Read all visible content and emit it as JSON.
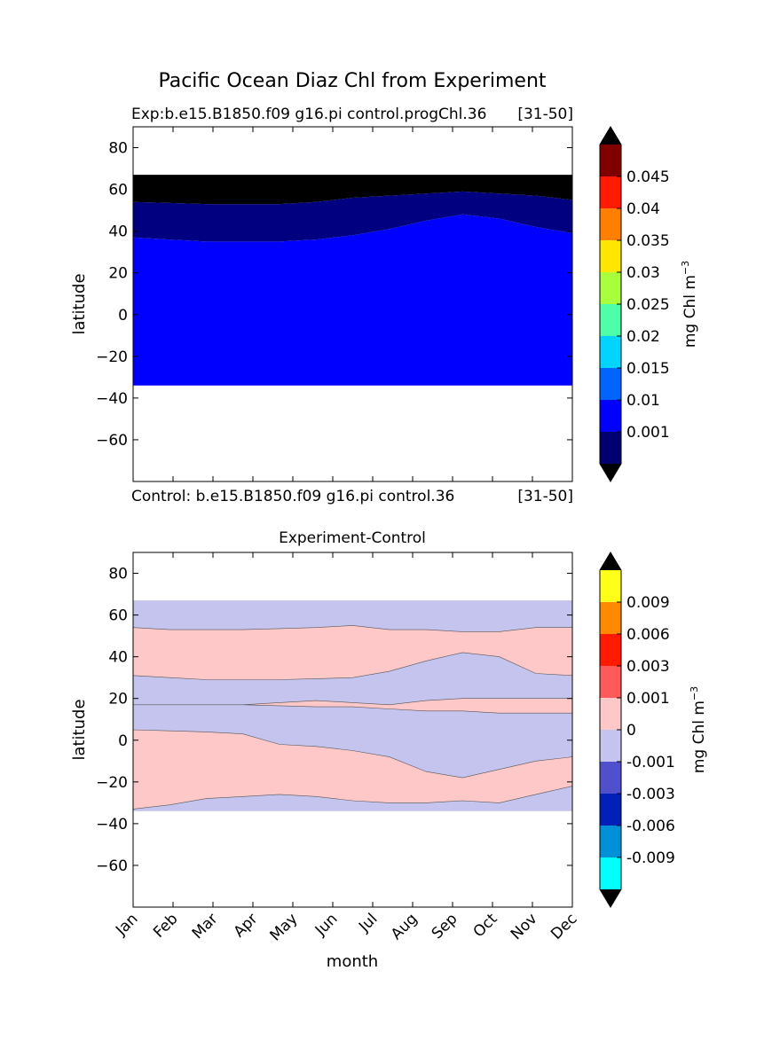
{
  "suptitle": "Pacific Ocean Diaz Chl from Experiment",
  "chart_data": [
    {
      "type": "heatmap",
      "panel": "experiment",
      "title_left": "Exp:b.e15.B1850.f09 g16.pi control.progChl.36",
      "title_right": "[31-50]",
      "bottom_left": "Control: b.e15.B1850.f09 g16.pi control.36",
      "bottom_right": "[31-50]",
      "ylabel": "latitude",
      "ylim": [
        -80,
        90
      ],
      "yticks": [
        80,
        60,
        40,
        20,
        0,
        -20,
        -40,
        -60
      ],
      "xlim": [
        1,
        12
      ],
      "months": [
        "Jan",
        "Feb",
        "Mar",
        "Apr",
        "May",
        "Jun",
        "Jul",
        "Aug",
        "Sep",
        "Oct",
        "Nov",
        "Dec"
      ],
      "data_lat_range": [
        -34,
        67
      ],
      "regions": [
        {
          "level": "0.001-0.01",
          "color": "#0000ff",
          "lower": [
            -34,
            -34,
            -34,
            -34,
            -34,
            -34,
            -34,
            -34,
            -34,
            -34,
            -34,
            -34,
            -34
          ],
          "upper": [
            37,
            36,
            35,
            35,
            35,
            36,
            38,
            41,
            45,
            48,
            46,
            42,
            39
          ]
        },
        {
          "level": "<0.001",
          "color": "#000080",
          "lower": [
            37,
            36,
            35,
            35,
            35,
            36,
            38,
            41,
            45,
            48,
            46,
            42,
            39
          ],
          "upper": [
            54,
            53.5,
            53,
            53,
            53,
            54,
            56,
            57,
            58,
            59,
            58,
            57,
            55
          ]
        },
        {
          "level": "<0.001 (darkest)",
          "color": "#000000",
          "lower": [
            54,
            53.5,
            53,
            53,
            53,
            54,
            56,
            57,
            58,
            59,
            58,
            57,
            55
          ],
          "upper": [
            67,
            67,
            67,
            67,
            67,
            67,
            67,
            67,
            67,
            67,
            67,
            67,
            67
          ]
        }
      ],
      "colorbar": {
        "label": "mg Chl m",
        "label_sup": "−3",
        "colors": [
          "#00006e",
          "#0000ff",
          "#0064ff",
          "#00d4ff",
          "#4dffa8",
          "#a8ff3b",
          "#ffe600",
          "#ff7f00",
          "#ff1a00",
          "#800000"
        ],
        "ticklabels": [
          "0.001",
          "0.01",
          "0.015",
          "0.02",
          "0.025",
          "0.03",
          "0.035",
          "0.04",
          "0.045"
        ],
        "under_color": "#000000",
        "over_color": "#000000"
      }
    },
    {
      "type": "heatmap",
      "panel": "difference",
      "title": "Experiment-Control",
      "ylabel": "latitude",
      "xlabel": "month",
      "ylim": [
        -80,
        90
      ],
      "yticks": [
        80,
        60,
        40,
        20,
        0,
        -20,
        -40,
        -60
      ],
      "xlim": [
        1,
        12
      ],
      "months": [
        "Jan",
        "Feb",
        "Mar",
        "Apr",
        "May",
        "Jun",
        "Jul",
        "Aug",
        "Sep",
        "Oct",
        "Nov",
        "Dec"
      ],
      "data_lat_range": [
        -34,
        67
      ],
      "background_band": {
        "level": "-0.001-0",
        "color": "#c4c4ee"
      },
      "positive_bands": [
        {
          "level": "0-0.001",
          "color": "#ffc8c8",
          "lower": [
            31,
            30,
            29,
            29,
            29,
            29.5,
            30,
            33,
            38,
            42,
            40,
            32,
            31
          ],
          "upper": [
            54,
            53,
            53,
            53,
            53.5,
            54,
            55,
            53,
            53,
            52,
            52,
            54,
            54
          ]
        },
        {
          "level": "0-0.001",
          "color": "#ffc8c8",
          "lower": [
            -33,
            -31,
            -28,
            -27,
            -26,
            -27,
            -29,
            -30,
            -30,
            -29,
            -30,
            -26,
            -22
          ],
          "upper": [
            5,
            4.5,
            4,
            3,
            -2,
            -3,
            -5,
            -8,
            -15,
            -18,
            -14,
            -10,
            -8
          ]
        },
        {
          "level": "0-0.001",
          "color": "#ffc8c8",
          "lower": [
            17,
            17,
            17,
            17,
            16.5,
            16,
            16,
            15,
            14,
            14,
            13,
            13,
            13
          ],
          "upper": [
            17,
            17,
            17,
            17,
            18,
            19,
            18,
            17,
            19,
            20,
            20,
            20,
            20
          ]
        }
      ],
      "colorbar": {
        "label": "mg Chl m",
        "label_sup": "−3",
        "colors": [
          "#00ffff",
          "#0090d8",
          "#0020b8",
          "#5050cc",
          "#c4c4ee",
          "#ffc8c8",
          "#ff5a5a",
          "#ff1a00",
          "#ff8a00",
          "#ffff1a"
        ],
        "ticklabels": [
          "-0.009",
          "-0.006",
          "-0.003",
          "-0.001",
          "0",
          "0.001",
          "0.003",
          "0.006",
          "0.009"
        ],
        "under_color": "#000000",
        "over_color": "#000000"
      }
    }
  ]
}
